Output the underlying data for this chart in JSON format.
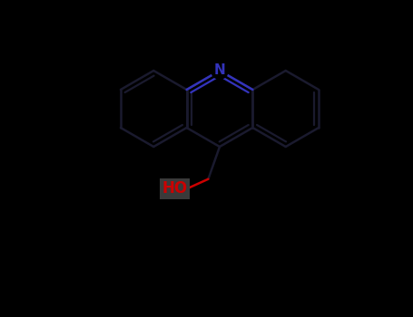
{
  "background_color": "#000000",
  "bond_color": "#1a1a2e",
  "N_color": "#3333bb",
  "HO_color": "#cc0000",
  "HO_bg": "#3a3a3a",
  "line_width": 1.8,
  "figsize": [
    4.55,
    3.5
  ],
  "dpi": 100,
  "N_fontsize": 11,
  "HO_fontsize": 12,
  "N_text": "N",
  "HO_text": "HO",
  "xlim": [
    0,
    455
  ],
  "ylim": [
    0,
    350
  ]
}
